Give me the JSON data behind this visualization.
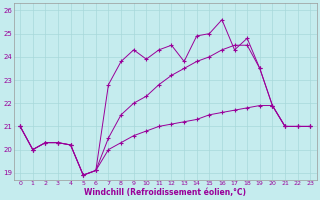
{
  "title": "",
  "xlabel": "Windchill (Refroidissement éolien,°C)",
  "bg_color": "#c5ecee",
  "line_color": "#990099",
  "grid_color": "#a8d8da",
  "xlim": [
    -0.5,
    23.5
  ],
  "ylim": [
    18.7,
    26.3
  ],
  "yticks": [
    19,
    20,
    21,
    22,
    23,
    24,
    25,
    26
  ],
  "xticks": [
    0,
    1,
    2,
    3,
    4,
    5,
    6,
    7,
    8,
    9,
    10,
    11,
    12,
    13,
    14,
    15,
    16,
    17,
    18,
    19,
    20,
    21,
    22,
    23
  ],
  "s1_x": [
    0,
    1,
    2,
    3,
    4,
    5,
    6,
    7,
    8,
    9,
    10,
    11,
    12,
    13,
    14,
    15,
    16,
    17,
    18,
    19,
    20,
    21,
    22,
    23
  ],
  "s1_y": [
    21.0,
    20.0,
    20.3,
    20.3,
    20.2,
    18.9,
    19.1,
    22.8,
    23.8,
    24.3,
    23.9,
    24.3,
    24.5,
    23.8,
    24.9,
    25.0,
    25.6,
    24.3,
    24.8,
    23.5,
    21.9,
    21.0,
    21.0,
    21.0
  ],
  "s2_x": [
    0,
    1,
    2,
    3,
    4,
    5,
    6,
    7,
    8,
    9,
    10,
    11,
    12,
    13,
    14,
    15,
    16,
    17,
    18,
    19,
    20,
    21,
    22,
    23
  ],
  "s2_y": [
    21.0,
    20.0,
    20.3,
    20.3,
    20.2,
    18.9,
    19.1,
    20.5,
    21.5,
    22.0,
    22.3,
    22.8,
    23.2,
    23.5,
    23.8,
    24.0,
    24.3,
    24.5,
    24.5,
    23.5,
    21.9,
    21.0,
    21.0,
    21.0
  ],
  "s3_x": [
    0,
    1,
    2,
    3,
    4,
    5,
    6,
    7,
    8,
    9,
    10,
    11,
    12,
    13,
    14,
    15,
    16,
    17,
    18,
    19,
    20,
    21,
    22,
    23
  ],
  "s3_y": [
    21.0,
    20.0,
    20.3,
    20.3,
    20.2,
    18.9,
    19.1,
    20.0,
    20.3,
    20.6,
    20.8,
    21.0,
    21.1,
    21.2,
    21.3,
    21.5,
    21.6,
    21.7,
    21.8,
    21.9,
    21.9,
    21.0,
    21.0,
    21.0
  ]
}
